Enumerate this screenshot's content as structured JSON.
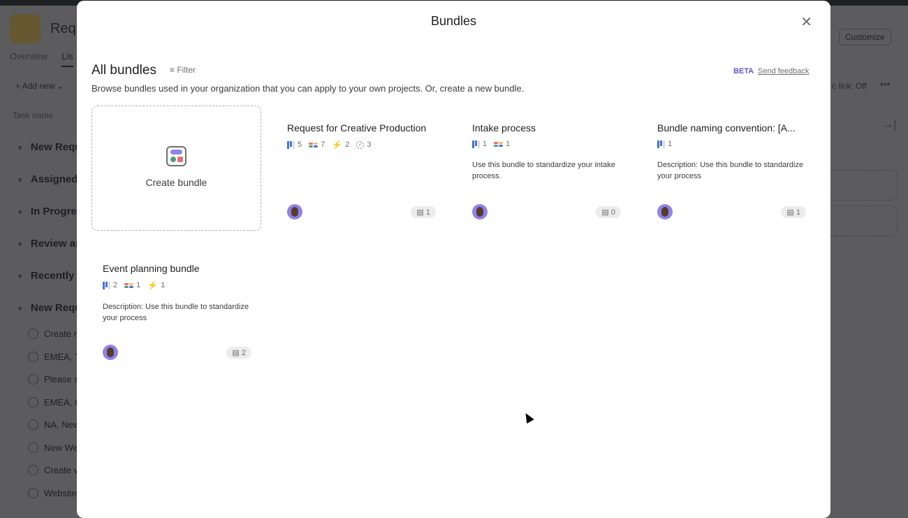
{
  "background": {
    "project_title": "Requ",
    "tabs": [
      "Overview",
      "Lis"
    ],
    "add_new": "+ Add new ⌄",
    "task_header": "Task name",
    "sections": [
      "New Requ",
      "Assigned",
      "In Progres",
      "Review an",
      "Recently C",
      "New Requ"
    ],
    "tasks": [
      "Create r",
      "EMEA, T",
      "Please s",
      "EMEA, C",
      "NA, New",
      "New We",
      "Create v",
      "Website"
    ],
    "customize": "Customize",
    "public_link": "c link: Off"
  },
  "modal": {
    "title": "Bundles",
    "heading": "All bundles",
    "filter": "Filter",
    "beta": "BETA",
    "feedback": "Send feedback",
    "subtitle": "Browse bundles used in your organization that you can apply to your own projects. Or, create a new bundle.",
    "create_label": "Create bundle",
    "bundles": [
      {
        "title": "Request for Creative Production",
        "stats": {
          "projects": 5,
          "fields": 7,
          "rules": 2,
          "tasks": 3
        },
        "description": "",
        "count": 1
      },
      {
        "title": "Intake process",
        "stats": {
          "projects": 1,
          "fields": 1
        },
        "description": "Use this bundle to standardize your intake process.",
        "count": 0
      },
      {
        "title": "Bundle naming convention: [A...",
        "stats": {
          "projects": 1
        },
        "description": "Description: Use this bundle to standardize your process",
        "count": 1
      },
      {
        "title": "Event planning bundle",
        "stats": {
          "projects": 2,
          "fields": 1,
          "rules": 1
        },
        "description": "Description: Use this bundle to standardize your process",
        "count": 2
      }
    ]
  },
  "colors": {
    "accent": "#6457c6",
    "overlay": "#1e1f21"
  }
}
